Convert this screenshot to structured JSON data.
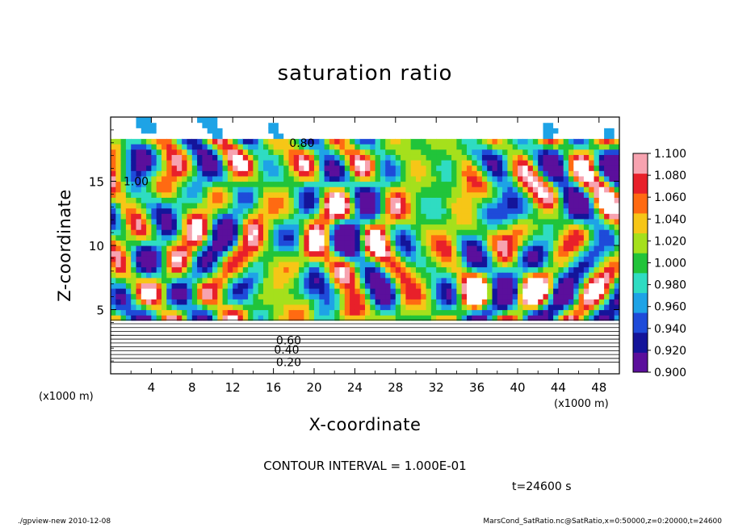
{
  "chart_data": {
    "type": "heatmap",
    "title": "saturation ratio",
    "xlabel": "X-coordinate",
    "ylabel": "Z-coordinate",
    "x_unit": "(x1000 m)",
    "y_unit": "",
    "xlim": [
      0,
      50
    ],
    "ylim": [
      0,
      20
    ],
    "x_ticks": [
      "4",
      "8",
      "12",
      "16",
      "20",
      "24",
      "28",
      "32",
      "36",
      "40",
      "44",
      "48"
    ],
    "y_ticks": [
      "5",
      "10",
      "15"
    ],
    "colorbar": {
      "labels": [
        "0.900",
        "0.920",
        "0.940",
        "0.960",
        "0.980",
        "1.000",
        "1.020",
        "1.040",
        "1.060",
        "1.080",
        "1.100"
      ],
      "range": [
        0.9,
        1.1
      ],
      "colors": [
        "#5b0f9c",
        "#14149a",
        "#1e4bd9",
        "#1ea3e6",
        "#2fdcc2",
        "#21c43a",
        "#a5e01c",
        "#f6c617",
        "#ff6a12",
        "#e8202a",
        "#f7a3b0"
      ]
    },
    "contour_interval": "CONTOUR INTERVAL = 1.000E-01",
    "contour_labels": [
      "0.20",
      "0.40",
      "0.60",
      "0.80",
      "1.00"
    ],
    "time": "t=24600 s"
  },
  "footer": {
    "left": "./gpview-new  2010-12-08",
    "right": "MarsCond_SatRatio.nc@SatRatio,x=0:50000,z=0:20000,t=24600"
  }
}
